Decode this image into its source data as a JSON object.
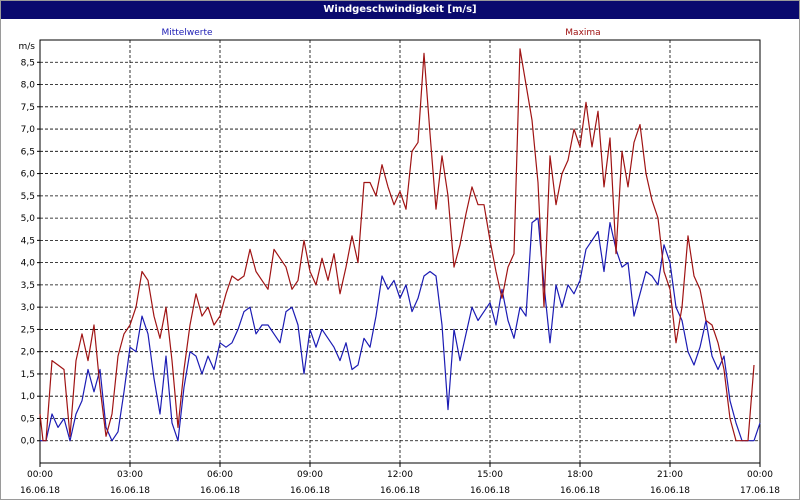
{
  "window": {
    "title": "Windgeschwindigkeit [m/s]"
  },
  "colors": {
    "title_bar": "#0a0a6e",
    "mittelwerte": "#1c1cb4",
    "maxima": "#a01414"
  },
  "chart_data": {
    "type": "line",
    "title": "Windgeschwindigkeit [m/s]",
    "ylabel": "m/s",
    "xlabel": "",
    "ylim": [
      -0.5,
      9.0
    ],
    "y_ticks": [
      0.0,
      0.5,
      1.0,
      1.5,
      2.0,
      2.5,
      3.0,
      3.5,
      4.0,
      4.5,
      5.0,
      5.5,
      6.0,
      6.5,
      7.0,
      7.5,
      8.0,
      8.5
    ],
    "y_tick_labels": [
      "0,0",
      "0,5",
      "1,0",
      "1,5",
      "2,0",
      "2,5",
      "3,0",
      "3,5",
      "4,0",
      "4,5",
      "5,0",
      "5,5",
      "6,0",
      "6,5",
      "7,0",
      "7,5",
      "8,0",
      "8,5"
    ],
    "x_range_hours": [
      0,
      24
    ],
    "x_ticks": [
      {
        "time": "00:00",
        "date": "16.06.18"
      },
      {
        "time": "03:00",
        "date": "16.06.18"
      },
      {
        "time": "06:00",
        "date": "16.06.18"
      },
      {
        "time": "09:00",
        "date": "16.06.18"
      },
      {
        "time": "12:00",
        "date": "16.06.18"
      },
      {
        "time": "15:00",
        "date": "16.06.18"
      },
      {
        "time": "18:00",
        "date": "16.06.18"
      },
      {
        "time": "21:00",
        "date": "16.06.18"
      },
      {
        "time": "00:00",
        "date": "17.06.18"
      }
    ],
    "grid": true,
    "x_hours": [
      0.0,
      0.1,
      0.2,
      0.4,
      0.6,
      0.8,
      1.0,
      1.2,
      1.4,
      1.6,
      1.8,
      2.0,
      2.2,
      2.4,
      2.6,
      2.8,
      3.0,
      3.2,
      3.4,
      3.6,
      3.8,
      4.0,
      4.2,
      4.4,
      4.6,
      4.8,
      5.0,
      5.2,
      5.4,
      5.6,
      5.8,
      6.0,
      6.2,
      6.4,
      6.6,
      6.8,
      7.0,
      7.2,
      7.4,
      7.6,
      7.8,
      8.0,
      8.2,
      8.4,
      8.6,
      8.8,
      9.0,
      9.2,
      9.4,
      9.6,
      9.8,
      10.0,
      10.2,
      10.4,
      10.6,
      10.8,
      11.0,
      11.2,
      11.4,
      11.6,
      11.8,
      12.0,
      12.2,
      12.4,
      12.6,
      12.8,
      13.0,
      13.2,
      13.4,
      13.6,
      13.8,
      14.0,
      14.2,
      14.4,
      14.6,
      14.8,
      15.0,
      15.2,
      15.4,
      15.6,
      15.8,
      16.0,
      16.2,
      16.4,
      16.6,
      16.8,
      17.0,
      17.2,
      17.4,
      17.6,
      17.8,
      18.0,
      18.2,
      18.4,
      18.6,
      18.8,
      19.0,
      19.2,
      19.4,
      19.6,
      19.8,
      20.0,
      20.2,
      20.4,
      20.6,
      20.8,
      21.0,
      21.2,
      21.4,
      21.6,
      21.8,
      22.0,
      22.2,
      22.4,
      22.6,
      22.8,
      23.0,
      23.2,
      23.4,
      23.6,
      23.8,
      24.0
    ],
    "series": [
      {
        "name": "Mittelwerte",
        "color": "#1c1cb4",
        "values": [
          0.0,
          0.0,
          0.0,
          0.6,
          0.3,
          0.5,
          0.0,
          0.6,
          0.9,
          1.6,
          1.1,
          1.6,
          0.3,
          0.0,
          0.2,
          1.1,
          2.1,
          2.0,
          2.8,
          2.4,
          1.4,
          0.6,
          1.9,
          0.4,
          0.0,
          1.2,
          2.0,
          1.9,
          1.5,
          1.9,
          1.6,
          2.2,
          2.1,
          2.2,
          2.5,
          2.9,
          3.0,
          2.4,
          2.6,
          2.6,
          2.4,
          2.2,
          2.9,
          3.0,
          2.6,
          1.5,
          2.5,
          2.1,
          2.5,
          2.3,
          2.1,
          1.8,
          2.2,
          1.6,
          1.7,
          2.3,
          2.1,
          2.8,
          3.7,
          3.4,
          3.6,
          3.2,
          3.5,
          2.9,
          3.2,
          3.7,
          3.8,
          3.7,
          2.6,
          0.7,
          2.5,
          1.8,
          2.4,
          3.0,
          2.7,
          2.9,
          3.1,
          2.6,
          3.4,
          2.7,
          2.3,
          3.0,
          2.8,
          4.9,
          5.0,
          3.5,
          2.2,
          3.5,
          3.0,
          3.5,
          3.3,
          3.6,
          4.3,
          4.5,
          4.7,
          3.8,
          4.9,
          4.3,
          3.9,
          4.0,
          2.8,
          3.3,
          3.8,
          3.7,
          3.5,
          4.4,
          4.0,
          3.0,
          2.7,
          2.0,
          1.7,
          2.1,
          2.7,
          1.9,
          1.6,
          1.9,
          0.9,
          0.4,
          0.0,
          0.0,
          0.0,
          0.4
        ]
      },
      {
        "name": "Maxima",
        "color": "#a01414",
        "values": [
          0.6,
          0.0,
          0.0,
          1.8,
          1.7,
          1.6,
          0.1,
          1.8,
          2.4,
          1.8,
          2.6,
          1.2,
          0.1,
          0.6,
          1.9,
          2.4,
          2.6,
          3.0,
          3.8,
          3.6,
          2.8,
          2.3,
          3.0,
          1.8,
          0.3,
          1.6,
          2.6,
          3.3,
          2.8,
          3.0,
          2.6,
          2.8,
          3.3,
          3.7,
          3.6,
          3.7,
          4.3,
          3.8,
          3.6,
          3.4,
          4.3,
          4.1,
          3.9,
          3.4,
          3.6,
          4.5,
          3.8,
          3.5,
          4.1,
          3.6,
          4.2,
          3.3,
          3.9,
          4.6,
          4.0,
          5.8,
          5.8,
          5.5,
          6.2,
          5.7,
          5.3,
          5.6,
          5.2,
          6.5,
          6.7,
          8.7,
          6.9,
          5.2,
          6.4,
          5.5,
          3.9,
          4.4,
          5.1,
          5.7,
          5.3,
          5.3,
          4.5,
          3.8,
          3.2,
          3.9,
          4.2,
          8.8,
          8.0,
          7.2,
          5.8,
          3.0,
          6.4,
          5.3,
          6.0,
          6.3,
          7.0,
          6.6,
          7.6,
          6.6,
          7.4,
          5.7,
          6.8,
          4.2,
          6.5,
          5.7,
          6.7,
          7.1,
          6.0,
          5.4,
          5.0,
          3.8,
          3.4,
          2.2,
          3.0,
          4.6,
          3.7,
          3.4,
          2.7,
          2.6,
          2.2,
          1.6,
          0.5,
          0.0,
          0.0,
          0.0,
          1.7
        ]
      }
    ]
  }
}
